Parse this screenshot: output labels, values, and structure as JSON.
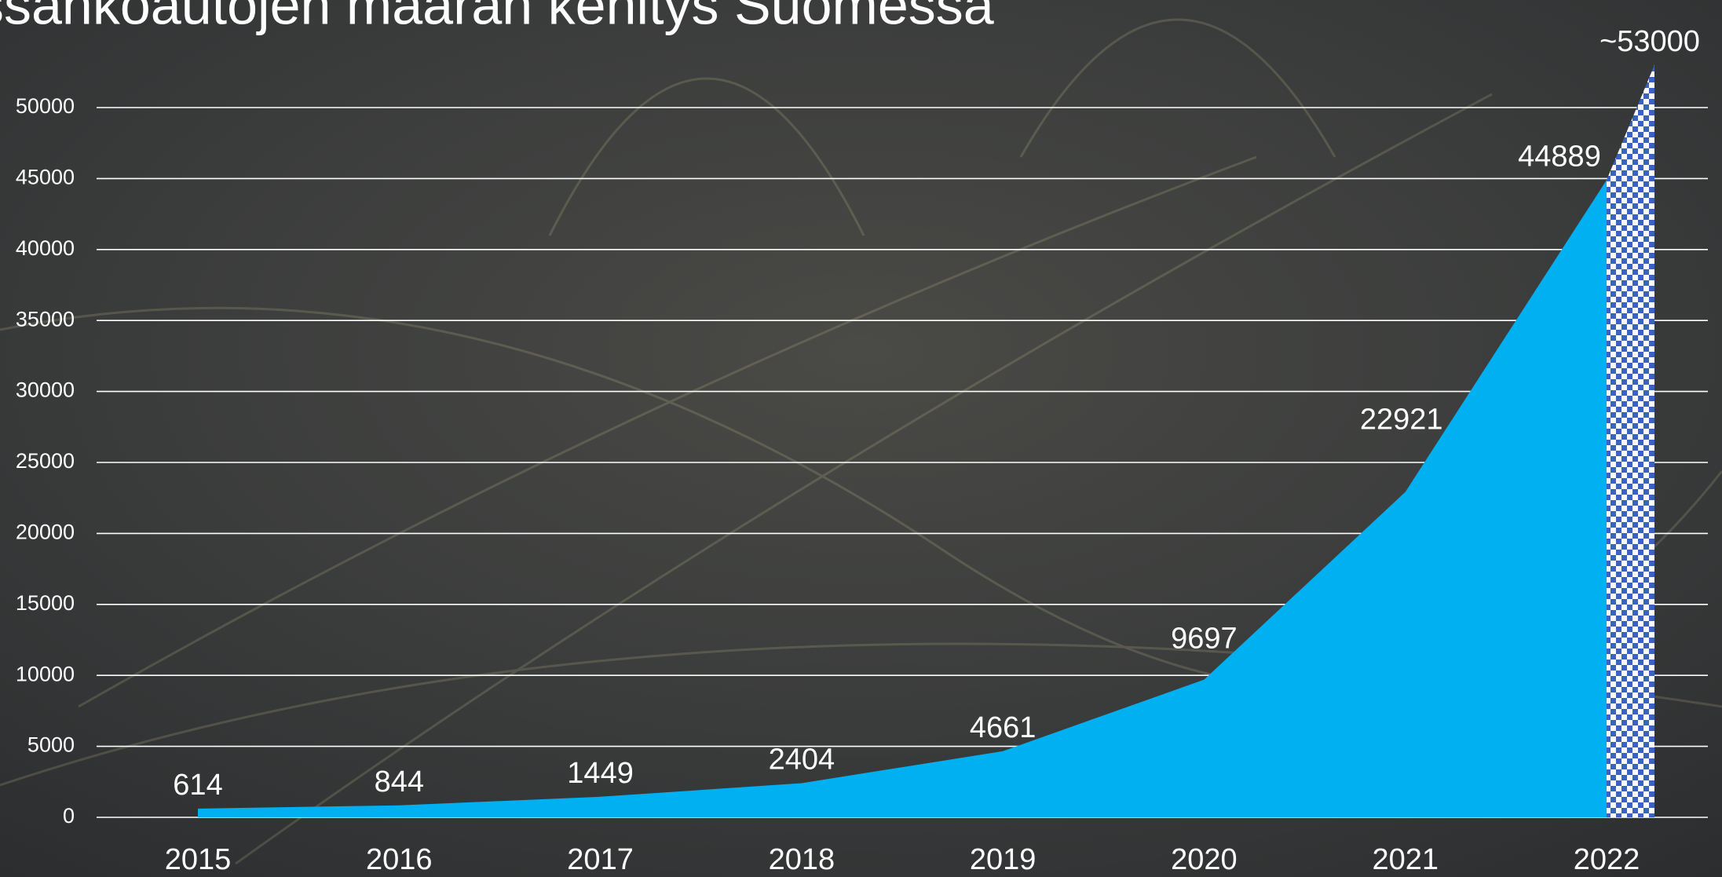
{
  "chart_data": {
    "type": "area",
    "title": "ssähköautojen määrän kehitys Suomessa",
    "x": [
      2015,
      2016,
      2017,
      2018,
      2019,
      2020,
      2021,
      2022
    ],
    "values": [
      614,
      844,
      1449,
      2404,
      4661,
      9697,
      22921,
      44889
    ],
    "color": "#00b0f0",
    "estimate": {
      "value": 53000,
      "label": "~53000"
    },
    "ylim": [
      0,
      53000
    ],
    "yticks": [
      0,
      5000,
      10000,
      15000,
      20000,
      25000,
      30000,
      35000,
      40000,
      45000,
      50000
    ],
    "grid": true
  }
}
